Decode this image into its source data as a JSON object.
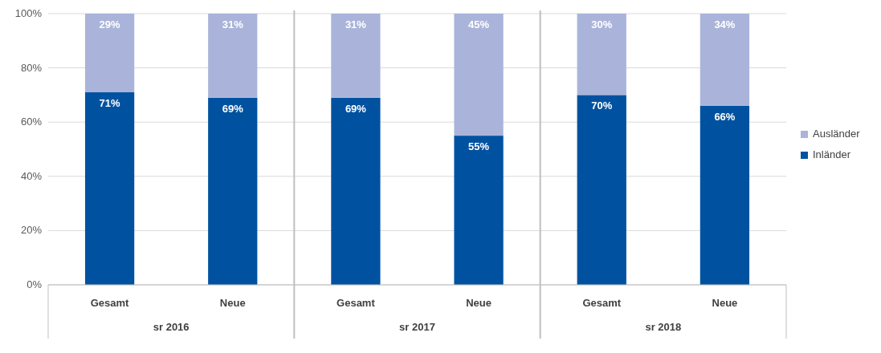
{
  "chart_data": {
    "type": "bar",
    "stacked": true,
    "categories": [
      "Gesamt",
      "Neue",
      "Gesamt",
      "Neue",
      "Gesamt",
      "Neue"
    ],
    "series": [
      {
        "name": "Inländer",
        "color": "#0052a0",
        "values": [
          71,
          69,
          69,
          55,
          70,
          66
        ],
        "value_labels": [
          "71%",
          "69%",
          "69%",
          "55%",
          "70%",
          "66%"
        ]
      },
      {
        "name": "Ausländer",
        "color": "#aab4da",
        "values": [
          29,
          31,
          31,
          45,
          30,
          34
        ],
        "value_labels": [
          "29%",
          "31%",
          "31%",
          "45%",
          "30%",
          "34%"
        ]
      }
    ],
    "ylim": [
      0,
      100
    ],
    "yticks": [
      {
        "value": 0,
        "label": "0%"
      },
      {
        "value": 20,
        "label": "20%"
      },
      {
        "value": 40,
        "label": "40%"
      },
      {
        "value": 60,
        "label": "60%"
      },
      {
        "value": 80,
        "label": "80%"
      },
      {
        "value": 100,
        "label": "100%"
      }
    ],
    "grid": "y",
    "legend": "right",
    "annotations": [
      "sr 2016",
      "sr 2017",
      "sr 2018"
    ]
  }
}
